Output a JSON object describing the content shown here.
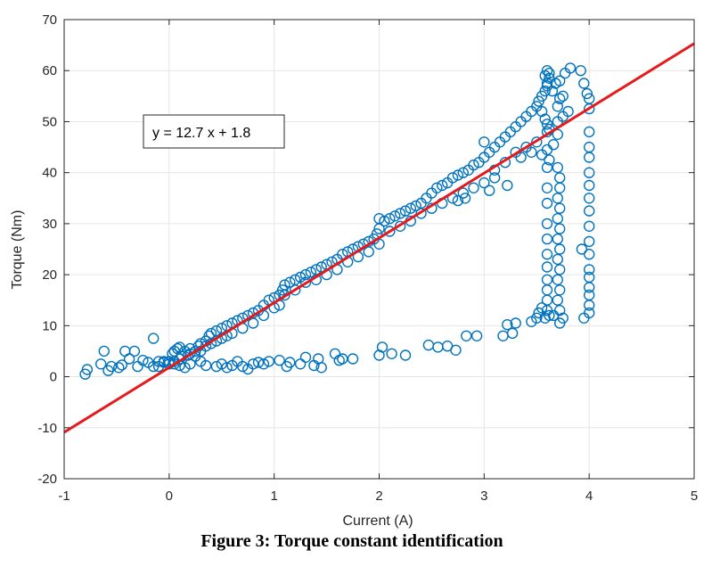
{
  "chart_data": {
    "type": "scatter",
    "xlabel": "Current (A)",
    "ylabel": "Torque (Nm)",
    "xlim": [
      -1,
      5
    ],
    "ylim": [
      -20,
      70
    ],
    "xticks": [
      -1,
      0,
      1,
      2,
      3,
      4,
      5
    ],
    "yticks": [
      -20,
      -10,
      0,
      10,
      20,
      30,
      40,
      50,
      60,
      70
    ],
    "grid": true,
    "annotation": "y = 12.7 x + 1.8",
    "colors": {
      "points": "#0072BD",
      "fit": "#E41A1C"
    },
    "fit": {
      "slope": 12.7,
      "intercept": 1.8,
      "x_range": [
        -1,
        5
      ]
    },
    "series": [
      {
        "marker": "circle-open",
        "points": [
          [
            -0.8,
            0.5
          ],
          [
            -0.78,
            1.4
          ],
          [
            -0.65,
            2.5
          ],
          [
            -0.62,
            5.0
          ],
          [
            -0.58,
            1.2
          ],
          [
            -0.55,
            2.0
          ],
          [
            -0.48,
            1.8
          ],
          [
            -0.45,
            2.3
          ],
          [
            -0.42,
            5.0
          ],
          [
            -0.38,
            3.5
          ],
          [
            -0.33,
            5.0
          ],
          [
            -0.3,
            2.0
          ],
          [
            -0.25,
            3.2
          ],
          [
            -0.2,
            2.8
          ],
          [
            -0.15,
            2.0
          ],
          [
            -0.15,
            7.5
          ],
          [
            -0.1,
            3.0
          ],
          [
            -0.05,
            2.8
          ],
          [
            0.0,
            3.0
          ],
          [
            0.05,
            2.5
          ],
          [
            0.1,
            2.2
          ],
          [
            0.15,
            1.8
          ],
          [
            0.2,
            2.5
          ],
          [
            0.3,
            3.0
          ],
          [
            0.35,
            2.2
          ],
          [
            0.45,
            2.0
          ],
          [
            0.5,
            2.5
          ],
          [
            0.55,
            1.8
          ],
          [
            0.6,
            2.2
          ],
          [
            0.65,
            3.0
          ],
          [
            0.7,
            2.0
          ],
          [
            0.75,
            1.5
          ],
          [
            0.8,
            2.5
          ],
          [
            0.85,
            2.8
          ],
          [
            0.9,
            2.5
          ],
          [
            0.95,
            3.0
          ],
          [
            1.05,
            3.2
          ],
          [
            1.12,
            2.0
          ],
          [
            1.15,
            2.8
          ],
          [
            1.25,
            2.5
          ],
          [
            1.3,
            3.8
          ],
          [
            1.38,
            2.2
          ],
          [
            1.42,
            3.5
          ],
          [
            1.45,
            1.8
          ],
          [
            1.58,
            4.5
          ],
          [
            1.62,
            3.2
          ],
          [
            1.65,
            3.5
          ],
          [
            1.75,
            3.5
          ],
          [
            2.0,
            4.2
          ],
          [
            2.03,
            5.8
          ],
          [
            2.12,
            4.5
          ],
          [
            2.25,
            4.2
          ],
          [
            2.47,
            6.2
          ],
          [
            2.56,
            5.8
          ],
          [
            2.65,
            6.0
          ],
          [
            2.73,
            5.2
          ],
          [
            2.83,
            8.0
          ],
          [
            2.93,
            8.0
          ],
          [
            3.18,
            8.0
          ],
          [
            3.22,
            10.2
          ],
          [
            3.27,
            8.5
          ],
          [
            3.3,
            10.5
          ],
          [
            3.45,
            10.8
          ],
          [
            3.5,
            11.5
          ],
          [
            3.52,
            12.5
          ],
          [
            3.55,
            13.5
          ],
          [
            -0.1,
            2.0
          ],
          [
            -0.05,
            3.0
          ],
          [
            0.0,
            2.5
          ],
          [
            0.03,
            4.5
          ],
          [
            0.05,
            3.0
          ],
          [
            0.08,
            5.5
          ],
          [
            0.1,
            3.5
          ],
          [
            0.12,
            4.0
          ],
          [
            0.15,
            5.0
          ],
          [
            0.18,
            4.2
          ],
          [
            0.2,
            5.5
          ],
          [
            0.25,
            5.0
          ],
          [
            0.28,
            6.0
          ],
          [
            0.3,
            6.5
          ],
          [
            0.35,
            7.0
          ],
          [
            0.38,
            8.0
          ],
          [
            0.4,
            8.5
          ],
          [
            0.45,
            9.0
          ],
          [
            0.5,
            9.5
          ],
          [
            0.55,
            10.0
          ],
          [
            0.6,
            10.5
          ],
          [
            0.65,
            11.0
          ],
          [
            0.7,
            11.5
          ],
          [
            0.75,
            12.0
          ],
          [
            0.8,
            12.5
          ],
          [
            0.85,
            13.0
          ],
          [
            0.9,
            14.0
          ],
          [
            0.95,
            15.0
          ],
          [
            1.0,
            15.5
          ],
          [
            1.05,
            16.0
          ],
          [
            1.08,
            17.0
          ],
          [
            1.1,
            18.0
          ],
          [
            1.15,
            18.5
          ],
          [
            1.2,
            19.0
          ],
          [
            1.25,
            19.5
          ],
          [
            1.3,
            20.0
          ],
          [
            1.35,
            20.5
          ],
          [
            1.4,
            21.0
          ],
          [
            1.45,
            21.5
          ],
          [
            1.5,
            22.0
          ],
          [
            1.55,
            22.5
          ],
          [
            1.6,
            23.0
          ],
          [
            1.65,
            24.0
          ],
          [
            1.7,
            24.5
          ],
          [
            1.75,
            25.0
          ],
          [
            1.8,
            25.5
          ],
          [
            1.85,
            26.0
          ],
          [
            1.9,
            26.5
          ],
          [
            1.95,
            27.0
          ],
          [
            1.98,
            28.0
          ],
          [
            2.0,
            29.0
          ],
          [
            2.0,
            31.0
          ],
          [
            2.05,
            30.5
          ],
          [
            2.1,
            31.0
          ],
          [
            2.15,
            31.5
          ],
          [
            2.2,
            32.0
          ],
          [
            2.25,
            32.5
          ],
          [
            2.3,
            33.0
          ],
          [
            2.35,
            33.5
          ],
          [
            2.4,
            34.0
          ],
          [
            2.45,
            35.0
          ],
          [
            2.5,
            36.0
          ],
          [
            2.55,
            37.0
          ],
          [
            2.6,
            37.5
          ],
          [
            2.65,
            38.0
          ],
          [
            2.7,
            39.0
          ],
          [
            2.75,
            39.5
          ],
          [
            2.8,
            40.0
          ],
          [
            2.85,
            40.5
          ],
          [
            2.9,
            41.5
          ],
          [
            2.95,
            42.0
          ],
          [
            3.0,
            43.0
          ],
          [
            3.0,
            46.0
          ],
          [
            3.05,
            44.0
          ],
          [
            3.1,
            45.0
          ],
          [
            3.15,
            46.0
          ],
          [
            3.2,
            47.0
          ],
          [
            3.25,
            48.0
          ],
          [
            3.3,
            49.0
          ],
          [
            3.35,
            50.0
          ],
          [
            3.4,
            51.0
          ],
          [
            3.45,
            52.0
          ],
          [
            3.5,
            53.0
          ],
          [
            3.52,
            54.0
          ],
          [
            3.55,
            55.0
          ],
          [
            3.58,
            56.0
          ],
          [
            3.6,
            57.5
          ],
          [
            3.62,
            58.5
          ],
          [
            0.05,
            5.0
          ],
          [
            0.1,
            5.8
          ],
          [
            0.2,
            4.5
          ],
          [
            0.25,
            4.0
          ],
          [
            0.3,
            5.0
          ],
          [
            0.35,
            6.0
          ],
          [
            0.4,
            6.5
          ],
          [
            0.45,
            7.0
          ],
          [
            0.5,
            7.5
          ],
          [
            0.55,
            8.0
          ],
          [
            0.6,
            8.5
          ],
          [
            0.7,
            9.5
          ],
          [
            0.8,
            10.5
          ],
          [
            0.9,
            12.0
          ],
          [
            1.0,
            13.5
          ],
          [
            1.05,
            14.0
          ],
          [
            1.1,
            16.0
          ],
          [
            1.2,
            17.0
          ],
          [
            1.3,
            18.5
          ],
          [
            1.4,
            19.0
          ],
          [
            1.5,
            20.0
          ],
          [
            1.6,
            21.0
          ],
          [
            1.7,
            22.5
          ],
          [
            1.8,
            23.5
          ],
          [
            1.9,
            24.5
          ],
          [
            2.0,
            26.0
          ],
          [
            2.1,
            28.5
          ],
          [
            2.2,
            29.5
          ],
          [
            2.3,
            30.5
          ],
          [
            2.4,
            32.0
          ],
          [
            2.5,
            33.0
          ],
          [
            2.6,
            34.0
          ],
          [
            2.7,
            35.0
          ],
          [
            2.8,
            36.0
          ],
          [
            2.9,
            37.0
          ],
          [
            3.0,
            38.0
          ],
          [
            3.1,
            40.5
          ],
          [
            3.2,
            42.0
          ],
          [
            3.3,
            44.0
          ],
          [
            3.4,
            45.0
          ],
          [
            3.5,
            46.0
          ],
          [
            3.6,
            48.0
          ],
          [
            3.7,
            50.0
          ],
          [
            3.75,
            51.0
          ],
          [
            3.8,
            52.0
          ],
          [
            2.75,
            34.5
          ],
          [
            2.82,
            35.0
          ],
          [
            3.05,
            36.5
          ],
          [
            3.1,
            39.0
          ],
          [
            3.22,
            37.5
          ],
          [
            3.35,
            43.0
          ],
          [
            3.45,
            44.0
          ],
          [
            3.55,
            43.5
          ],
          [
            3.62,
            42.5
          ],
          [
            3.66,
            45.5
          ],
          [
            3.7,
            47.5
          ],
          [
            3.58,
            59.0
          ],
          [
            3.6,
            60.0
          ],
          [
            3.62,
            59.5
          ],
          [
            3.6,
            57.0
          ],
          [
            3.65,
            56.0
          ],
          [
            3.68,
            57.5
          ],
          [
            3.72,
            58.0
          ],
          [
            3.77,
            59.5
          ],
          [
            3.82,
            60.5
          ],
          [
            3.92,
            60.0
          ],
          [
            3.95,
            57.5
          ],
          [
            3.98,
            55.5
          ],
          [
            4.0,
            54.5
          ],
          [
            4.0,
            52.5
          ],
          [
            3.55,
            52.0
          ],
          [
            3.58,
            50.5
          ],
          [
            3.6,
            49.5
          ],
          [
            3.62,
            48.5
          ],
          [
            3.7,
            53.0
          ],
          [
            3.72,
            54.5
          ],
          [
            3.75,
            55.0
          ],
          [
            3.6,
            44.5
          ],
          [
            3.6,
            41.0
          ],
          [
            3.6,
            37.0
          ],
          [
            3.6,
            34.0
          ],
          [
            3.6,
            30.0
          ],
          [
            3.6,
            27.0
          ],
          [
            3.6,
            24.0
          ],
          [
            3.6,
            21.5
          ],
          [
            3.6,
            19.0
          ],
          [
            3.6,
            17.0
          ],
          [
            3.6,
            15.0
          ],
          [
            3.6,
            13.0
          ],
          [
            3.62,
            12.0
          ],
          [
            3.58,
            11.5
          ],
          [
            3.7,
            41.0
          ],
          [
            3.72,
            39.0
          ],
          [
            3.72,
            37.0
          ],
          [
            3.7,
            35.0
          ],
          [
            3.72,
            33.0
          ],
          [
            3.7,
            31.0
          ],
          [
            3.72,
            29.0
          ],
          [
            3.7,
            27.0
          ],
          [
            3.72,
            25.0
          ],
          [
            3.7,
            23.0
          ],
          [
            3.72,
            21.0
          ],
          [
            3.7,
            19.0
          ],
          [
            3.72,
            17.0
          ],
          [
            3.7,
            15.0
          ],
          [
            3.72,
            13.0
          ],
          [
            3.75,
            11.5
          ],
          [
            3.72,
            10.5
          ],
          [
            3.66,
            12.0
          ],
          [
            4.0,
            48.0
          ],
          [
            4.0,
            45.0
          ],
          [
            4.0,
            43.0
          ],
          [
            4.0,
            40.0
          ],
          [
            4.0,
            37.5
          ],
          [
            4.0,
            35.0
          ],
          [
            4.0,
            32.5
          ],
          [
            4.0,
            29.5
          ],
          [
            4.0,
            26.5
          ],
          [
            4.0,
            24.0
          ],
          [
            4.0,
            21.0
          ],
          [
            4.0,
            19.5
          ],
          [
            4.0,
            17.5
          ],
          [
            4.0,
            16.0
          ],
          [
            4.0,
            14.0
          ],
          [
            4.0,
            12.5
          ],
          [
            3.95,
            11.5
          ],
          [
            3.93,
            25.0
          ]
        ]
      }
    ]
  }
}
